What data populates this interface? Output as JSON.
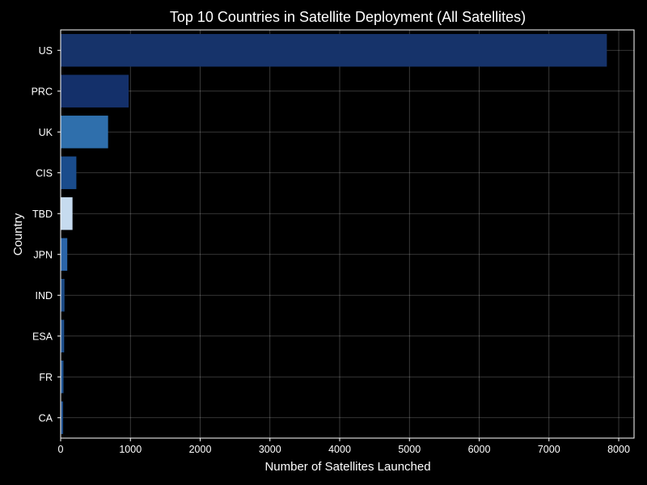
{
  "chart_data": {
    "type": "bar",
    "orientation": "horizontal",
    "title": "Top 10 Countries in Satellite Deployment (All Satellites)",
    "xlabel": "Number of Satellites Launched",
    "ylabel": "Country",
    "categories": [
      "US",
      "PRC",
      "UK",
      "CIS",
      "TBD",
      "JPN",
      "IND",
      "ESA",
      "FR",
      "CA"
    ],
    "values": [
      7830,
      975,
      680,
      225,
      170,
      95,
      55,
      50,
      40,
      35
    ],
    "colors": [
      "#16336a",
      "#14306a",
      "#2f6fac",
      "#1a4c8c",
      "#c6dbef",
      "#2a64a8",
      "#1b4a86",
      "#1d4f8c",
      "#1f5493",
      "#1c4c88"
    ],
    "xlim": [
      0,
      8220
    ],
    "xticks": [
      0,
      1000,
      2000,
      3000,
      4000,
      5000,
      6000,
      7000,
      8000
    ],
    "grid": true,
    "background": "#000000"
  }
}
